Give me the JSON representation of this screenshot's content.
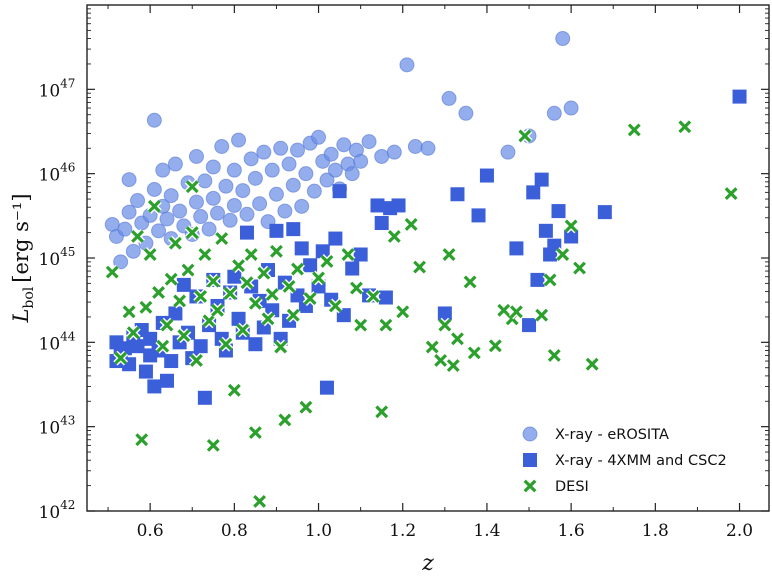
{
  "chart_data": {
    "type": "scatter",
    "title": "",
    "xlabel": "z",
    "ylabel": {
      "base": "L",
      "subscript": "bol",
      "units": "[erg s⁻¹]"
    },
    "xlim": [
      0.45,
      2.07
    ],
    "ylim": [
      1e+42,
      1e+48
    ],
    "yscale": "log",
    "grid": false,
    "legend_position": "bottom-right",
    "x_ticks": [
      "0.6",
      "0.8",
      "1.0",
      "1.2",
      "1.4",
      "1.6",
      "1.8",
      "2.0"
    ],
    "y_ticks": [
      {
        "base": "10",
        "exp": "42",
        "value": 1e+42
      },
      {
        "base": "10",
        "exp": "43",
        "value": 1e+43
      },
      {
        "base": "10",
        "exp": "44",
        "value": 1e+44
      },
      {
        "base": "10",
        "exp": "45",
        "value": 1e+45
      },
      {
        "base": "10",
        "exp": "46",
        "value": 1e+46
      },
      {
        "base": "10",
        "exp": "47",
        "value": 1e+47
      }
    ],
    "series": [
      {
        "name": "X-ray - eROSITA",
        "marker": "circle",
        "color": "#6b8fe6",
        "points": [
          [
            0.51,
            2.5e+45
          ],
          [
            0.52,
            1.8e+45
          ],
          [
            0.53,
            9e+44
          ],
          [
            0.54,
            2.2e+45
          ],
          [
            0.55,
            3.5e+45
          ],
          [
            0.55,
            8.5e+45
          ],
          [
            0.56,
            1.2e+45
          ],
          [
            0.57,
            4.8e+45
          ],
          [
            0.58,
            2.6e+45
          ],
          [
            0.59,
            1.5e+45
          ],
          [
            0.6,
            3.2e+45
          ],
          [
            0.61,
            4.3e+46
          ],
          [
            0.61,
            6.5e+45
          ],
          [
            0.62,
            2.1e+45
          ],
          [
            0.63,
            1.1e+46
          ],
          [
            0.63,
            4.1e+45
          ],
          [
            0.64,
            2.9e+45
          ],
          [
            0.65,
            1.7e+45
          ],
          [
            0.65,
            5.5e+45
          ],
          [
            0.66,
            1.3e+46
          ],
          [
            0.67,
            3.6e+45
          ],
          [
            0.68,
            2.4e+45
          ],
          [
            0.69,
            7.8e+45
          ],
          [
            0.7,
            1.9e+45
          ],
          [
            0.71,
            4.6e+45
          ],
          [
            0.71,
            1.6e+46
          ],
          [
            0.72,
            3.1e+45
          ],
          [
            0.73,
            8.2e+45
          ],
          [
            0.74,
            2.2e+45
          ],
          [
            0.75,
            1.2e+46
          ],
          [
            0.75,
            5.1e+45
          ],
          [
            0.76,
            3.4e+45
          ],
          [
            0.77,
            2.1e+46
          ],
          [
            0.78,
            7.1e+45
          ],
          [
            0.79,
            2.8e+45
          ],
          [
            0.8,
            1.1e+46
          ],
          [
            0.8,
            4.2e+45
          ],
          [
            0.81,
            2.5e+46
          ],
          [
            0.82,
            6.3e+45
          ],
          [
            0.83,
            3.3e+45
          ],
          [
            0.84,
            1.5e+46
          ],
          [
            0.85,
            8.8e+45
          ],
          [
            0.86,
            4.4e+45
          ],
          [
            0.87,
            1.8e+46
          ],
          [
            0.88,
            2.7e+45
          ],
          [
            0.89,
            1.1e+46
          ],
          [
            0.9,
            5.7e+45
          ],
          [
            0.91,
            2e+46
          ],
          [
            0.92,
            3.6e+45
          ],
          [
            0.93,
            1.3e+46
          ],
          [
            0.94,
            7.3e+45
          ],
          [
            0.95,
            1.9e+46
          ],
          [
            0.96,
            4.1e+45
          ],
          [
            0.97,
            1e+46
          ],
          [
            0.98,
            2.3e+46
          ],
          [
            0.99,
            6.2e+45
          ],
          [
            1.0,
            2.7e+46
          ],
          [
            1.01,
            1.4e+46
          ],
          [
            1.02,
            8.4e+45
          ],
          [
            1.03,
            1.7e+46
          ],
          [
            1.04,
            1.1e+46
          ],
          [
            1.05,
            6.6e+45
          ],
          [
            1.06,
            2.2e+46
          ],
          [
            1.07,
            1.3e+46
          ],
          [
            1.08,
            1e+46
          ],
          [
            1.09,
            1.9e+46
          ],
          [
            1.1,
            1.4e+46
          ],
          [
            1.12,
            2.4e+46
          ],
          [
            1.15,
            1.6e+46
          ],
          [
            1.18,
            1.8e+46
          ],
          [
            1.21,
            1.95e+47
          ],
          [
            1.23,
            2.1e+46
          ],
          [
            1.26,
            2e+46
          ],
          [
            1.31,
            7.8e+46
          ],
          [
            1.35,
            5.2e+46
          ],
          [
            1.45,
            1.8e+46
          ],
          [
            1.5,
            2.8e+46
          ],
          [
            1.56,
            5.2e+46
          ],
          [
            1.58,
            4e+47
          ],
          [
            1.6,
            6e+46
          ]
        ]
      },
      {
        "name": "X-ray - 4XMM and CSC2",
        "marker": "square",
        "color": "#3a5fd9",
        "points": [
          [
            0.52,
            6e+43
          ],
          [
            0.52,
            1e+44
          ],
          [
            0.53,
            7.5e+43
          ],
          [
            0.54,
            8.5e+43
          ],
          [
            0.55,
            5.5e+43
          ],
          [
            0.56,
            1.2e+44
          ],
          [
            0.57,
            9e+43
          ],
          [
            0.58,
            1.4e+44
          ],
          [
            0.59,
            4.5e+43
          ],
          [
            0.6,
            7e+43
          ],
          [
            0.6,
            1.1e+44
          ],
          [
            0.61,
            3e+43
          ],
          [
            0.62,
            8e+43
          ],
          [
            0.63,
            1.7e+44
          ],
          [
            0.64,
            3.5e+43
          ],
          [
            0.65,
            6e+43
          ],
          [
            0.66,
            2.2e+44
          ],
          [
            0.67,
            1e+44
          ],
          [
            0.68,
            4.8e+44
          ],
          [
            0.69,
            1.3e+44
          ],
          [
            0.7,
            6.5e+43
          ],
          [
            0.71,
            3.5e+44
          ],
          [
            0.72,
            9e+43
          ],
          [
            0.73,
            2.2e+43
          ],
          [
            0.74,
            1.6e+44
          ],
          [
            0.75,
            5.5e+44
          ],
          [
            0.76,
            2.7e+44
          ],
          [
            0.77,
            1.1e+44
          ],
          [
            0.78,
            8e+43
          ],
          [
            0.79,
            3.9e+44
          ],
          [
            0.8,
            6e+44
          ],
          [
            0.81,
            1.9e+44
          ],
          [
            0.82,
            1.3e+44
          ],
          [
            0.83,
            2e+45
          ],
          [
            0.84,
            4.6e+44
          ],
          [
            0.85,
            9.5e+43
          ],
          [
            0.86,
            3.1e+44
          ],
          [
            0.87,
            1.5e+44
          ],
          [
            0.88,
            7.2e+44
          ],
          [
            0.89,
            2.4e+44
          ],
          [
            0.9,
            2.1e+45
          ],
          [
            0.91,
            1.1e+44
          ],
          [
            0.92,
            5.1e+44
          ],
          [
            0.93,
            1.8e+44
          ],
          [
            0.94,
            2.2e+45
          ],
          [
            0.95,
            3.6e+44
          ],
          [
            0.96,
            1.3e+45
          ],
          [
            0.97,
            2.7e+44
          ],
          [
            0.98,
            8.2e+44
          ],
          [
            1.0,
            4.6e+44
          ],
          [
            1.01,
            1.2e+45
          ],
          [
            1.02,
            2.9e+43
          ],
          [
            1.03,
            3.2e+44
          ],
          [
            1.04,
            1.7e+45
          ],
          [
            1.05,
            6.2e+45
          ],
          [
            1.06,
            2.1e+44
          ],
          [
            1.08,
            7.5e+44
          ],
          [
            1.1,
            1.1e+45
          ],
          [
            1.12,
            3.6e+44
          ],
          [
            1.14,
            4.2e+45
          ],
          [
            1.15,
            2.6e+45
          ],
          [
            1.16,
            3.4e+44
          ],
          [
            1.17,
            3.9e+45
          ],
          [
            1.19,
            4.2e+45
          ],
          [
            1.3,
            2.2e+44
          ],
          [
            1.33,
            5.7e+45
          ],
          [
            1.38,
            3.2e+45
          ],
          [
            1.4,
            9.5e+45
          ],
          [
            1.47,
            1.3e+45
          ],
          [
            1.5,
            1.6e+44
          ],
          [
            1.51,
            6e+45
          ],
          [
            1.53,
            8.5e+45
          ],
          [
            1.54,
            2.1e+45
          ],
          [
            1.55,
            1.1e+45
          ],
          [
            1.56,
            1.4e+45
          ],
          [
            1.57,
            3.6e+45
          ],
          [
            1.6,
            1.8e+45
          ],
          [
            1.68,
            3.5e+45
          ],
          [
            2.0,
            8.2e+46
          ],
          [
            1.52,
            5.5e+44
          ]
        ]
      },
      {
        "name": "DESI",
        "marker": "x",
        "color": "#2ca02c",
        "points": [
          [
            0.51,
            6.8e+44
          ],
          [
            0.53,
            6.5e+43
          ],
          [
            0.55,
            2.3e+44
          ],
          [
            0.56,
            1.3e+44
          ],
          [
            0.57,
            1.8e+45
          ],
          [
            0.58,
            7e+42
          ],
          [
            0.59,
            2.6e+44
          ],
          [
            0.6,
            1.1e+45
          ],
          [
            0.61,
            4.1e+45
          ],
          [
            0.62,
            3.9e+44
          ],
          [
            0.63,
            9e+43
          ],
          [
            0.64,
            1.6e+44
          ],
          [
            0.65,
            5.6e+44
          ],
          [
            0.66,
            1.5e+45
          ],
          [
            0.67,
            3.1e+44
          ],
          [
            0.68,
            1.2e+44
          ],
          [
            0.69,
            7.2e+44
          ],
          [
            0.7,
            2e+45
          ],
          [
            0.7,
            7e+45
          ],
          [
            0.71,
            6.1e+43
          ],
          [
            0.72,
            3.5e+44
          ],
          [
            0.73,
            1.1e+45
          ],
          [
            0.74,
            1.8e+44
          ],
          [
            0.75,
            6e+42
          ],
          [
            0.75,
            5.3e+44
          ],
          [
            0.76,
            2.4e+44
          ],
          [
            0.77,
            1.7e+45
          ],
          [
            0.78,
            9.5e+43
          ],
          [
            0.79,
            3.8e+44
          ],
          [
            0.8,
            2.7e+43
          ],
          [
            0.81,
            8.1e+44
          ],
          [
            0.82,
            1.4e+44
          ],
          [
            0.83,
            5.1e+44
          ],
          [
            0.84,
            1.1e+45
          ],
          [
            0.85,
            8.5e+42
          ],
          [
            0.85,
            2.9e+44
          ],
          [
            0.86,
            1.3e+42
          ],
          [
            0.87,
            6.6e+44
          ],
          [
            0.88,
            1.9e+44
          ],
          [
            0.89,
            3.7e+44
          ],
          [
            0.9,
            1.2e+45
          ],
          [
            0.91,
            8.8e+43
          ],
          [
            0.92,
            1.2e+43
          ],
          [
            0.93,
            4.6e+44
          ],
          [
            0.94,
            2.1e+44
          ],
          [
            0.95,
            7.4e+44
          ],
          [
            0.97,
            1.7e+43
          ],
          [
            0.98,
            3.3e+44
          ],
          [
            1.0,
            5.8e+44
          ],
          [
            1.02,
            9.1e+44
          ],
          [
            1.04,
            2.7e+44
          ],
          [
            1.07,
            1.1e+45
          ],
          [
            1.09,
            4.4e+44
          ],
          [
            1.1,
            1.6e+44
          ],
          [
            1.13,
            3.5e+44
          ],
          [
            1.15,
            1.5e+43
          ],
          [
            1.16,
            1.6e+44
          ],
          [
            1.18,
            1.8e+45
          ],
          [
            1.2,
            2.3e+44
          ],
          [
            1.22,
            2.5e+45
          ],
          [
            1.24,
            7.8e+44
          ],
          [
            1.27,
            8.8e+43
          ],
          [
            1.29,
            6.1e+43
          ],
          [
            1.3,
            1.6e+44
          ],
          [
            1.31,
            1.1e+45
          ],
          [
            1.32,
            5.3e+43
          ],
          [
            1.33,
            1.1e+44
          ],
          [
            1.36,
            5.2e+44
          ],
          [
            1.37,
            7.5e+43
          ],
          [
            1.42,
            9.1e+43
          ],
          [
            1.44,
            2.4e+44
          ],
          [
            1.46,
            1.9e+44
          ],
          [
            1.49,
            2.8e+46
          ],
          [
            1.53,
            2.1e+44
          ],
          [
            1.55,
            5.5e+44
          ],
          [
            1.56,
            7e+43
          ],
          [
            1.58,
            1.1e+45
          ],
          [
            1.6,
            2.4e+45
          ],
          [
            1.62,
            7.6e+44
          ],
          [
            1.65,
            5.5e+43
          ],
          [
            1.75,
            3.3e+46
          ],
          [
            1.87,
            3.6e+46
          ],
          [
            1.98,
            5.8e+45
          ],
          [
            1.47,
            2.3e+44
          ]
        ]
      }
    ]
  }
}
